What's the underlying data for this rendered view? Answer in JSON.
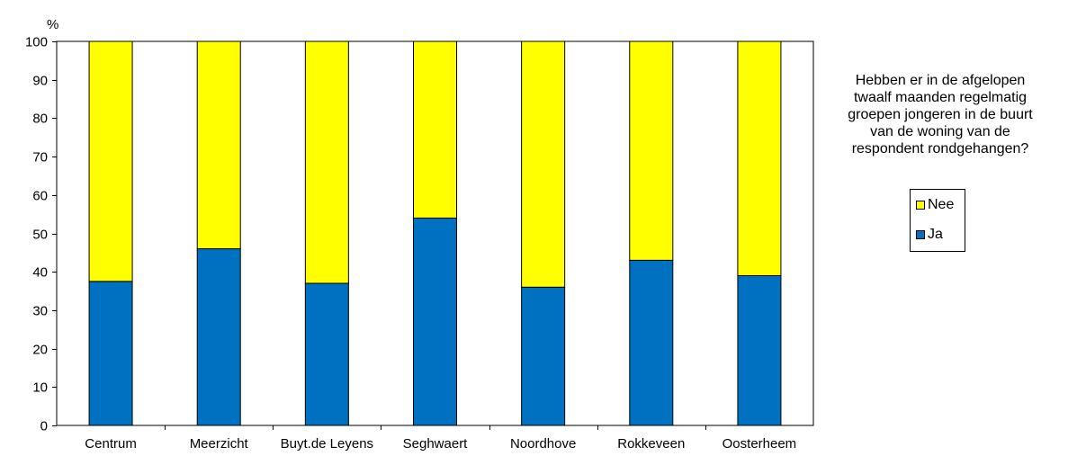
{
  "chart_data": {
    "type": "bar",
    "stacked": true,
    "ylabel": "%",
    "ylim": [
      0,
      100
    ],
    "yticks": [
      "0",
      "10",
      "20",
      "30",
      "40",
      "50",
      "60",
      "70",
      "80",
      "90",
      "100"
    ],
    "categories": [
      "Centrum",
      "Meerzicht",
      "Buyt.de Leyens",
      "Seghwaert",
      "Noordhove",
      "Rokkeveen",
      "Oosterheem"
    ],
    "series": [
      {
        "name": "Ja",
        "color": "#0070C0",
        "values": [
          37.5,
          46,
          37,
          54,
          36,
          43,
          39
        ]
      },
      {
        "name": "Nee",
        "color": "#FFFF00",
        "values": [
          62.5,
          54,
          63,
          46,
          64,
          57,
          61
        ]
      }
    ],
    "grid": false,
    "legend": {
      "position": "right",
      "title_lines": [
        "Hebben er in de afgelopen",
        "twaalf maanden regelmatig",
        "groepen jongeren in de buurt",
        "van de woning van de",
        "respondent rondgehangen?"
      ],
      "order": [
        "Nee",
        "Ja"
      ]
    }
  }
}
